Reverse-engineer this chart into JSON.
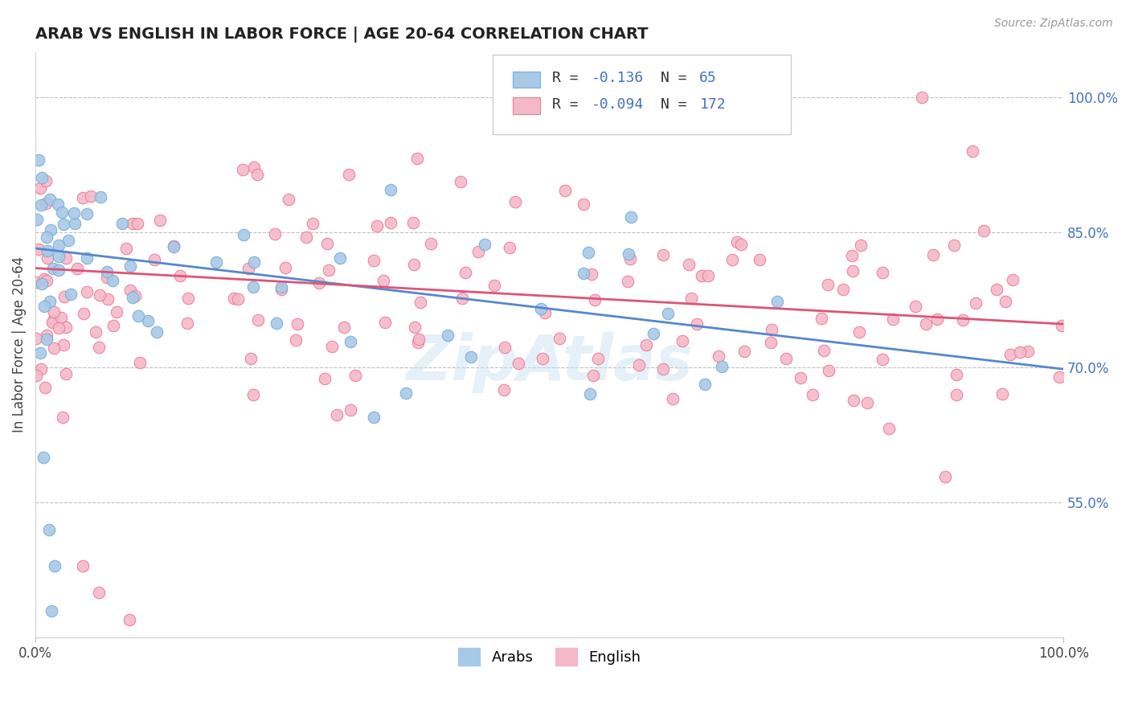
{
  "title": "ARAB VS ENGLISH IN LABOR FORCE | AGE 20-64 CORRELATION CHART",
  "source_text": "Source: ZipAtlas.com",
  "ylabel": "In Labor Force | Age 20-64",
  "xlim": [
    0.0,
    1.0
  ],
  "ylim": [
    0.4,
    1.05
  ],
  "x_tick_labels": [
    "0.0%",
    "100.0%"
  ],
  "y_tick_values": [
    0.55,
    0.7,
    0.85,
    1.0
  ],
  "arab_R": -0.136,
  "arab_N": 65,
  "english_R": -0.094,
  "english_N": 172,
  "arab_color": "#a8c8e8",
  "arab_edge_color": "#7aafd4",
  "english_color": "#f5b8c8",
  "english_edge_color": "#e8809a",
  "arab_line_color": "#5588cc",
  "english_line_color": "#dd5577",
  "watermark": "ZipAtlas",
  "legend_arab_label": "Arabs",
  "legend_english_label": "English",
  "legend_text_color": "#4472c4",
  "arab_line_y0": 0.832,
  "arab_line_y1": 0.698,
  "english_line_y0": 0.81,
  "english_line_y1": 0.748
}
